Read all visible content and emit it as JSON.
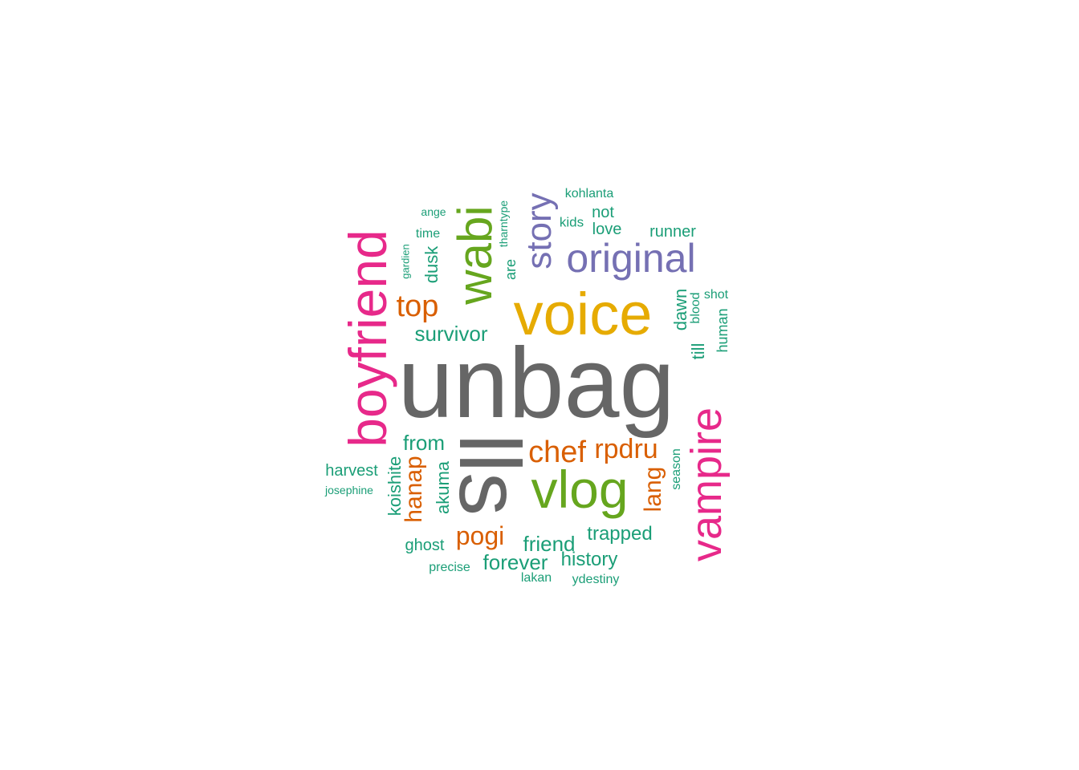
{
  "palette": {
    "teal": "#1b9e77",
    "orange": "#d95f02",
    "purple": "#7570b3",
    "magenta": "#e7298a",
    "green": "#66a61e",
    "gold": "#e6ab02",
    "gray": "#666666"
  },
  "words": [
    {
      "text": "unbag",
      "color": "gray"
    },
    {
      "text": "lls",
      "color": "gray"
    },
    {
      "text": "voice",
      "color": "gold"
    },
    {
      "text": "vlog",
      "color": "green"
    },
    {
      "text": "wabi",
      "color": "green"
    },
    {
      "text": "boyfriend",
      "color": "magenta"
    },
    {
      "text": "vampire",
      "color": "magenta"
    },
    {
      "text": "original",
      "color": "purple"
    },
    {
      "text": "story",
      "color": "purple"
    },
    {
      "text": "chef",
      "color": "orange"
    },
    {
      "text": "rpdru",
      "color": "orange"
    },
    {
      "text": "top",
      "color": "orange"
    },
    {
      "text": "pogi",
      "color": "orange"
    },
    {
      "text": "hanap",
      "color": "orange"
    },
    {
      "text": "lang",
      "color": "orange"
    },
    {
      "text": "survivor",
      "color": "teal"
    },
    {
      "text": "from",
      "color": "teal"
    },
    {
      "text": "friend",
      "color": "teal"
    },
    {
      "text": "trapped",
      "color": "teal"
    },
    {
      "text": "forever",
      "color": "teal"
    },
    {
      "text": "history",
      "color": "teal"
    },
    {
      "text": "dusk",
      "color": "teal"
    },
    {
      "text": "dawn",
      "color": "teal"
    },
    {
      "text": "till",
      "color": "teal"
    },
    {
      "text": "akuma",
      "color": "teal"
    },
    {
      "text": "koishite",
      "color": "teal"
    },
    {
      "text": "harvest",
      "color": "teal"
    },
    {
      "text": "ghost",
      "color": "teal"
    },
    {
      "text": "runner",
      "color": "teal"
    },
    {
      "text": "not",
      "color": "teal"
    },
    {
      "text": "love",
      "color": "teal"
    },
    {
      "text": "human",
      "color": "teal"
    },
    {
      "text": "season",
      "color": "teal"
    },
    {
      "text": "blood",
      "color": "teal"
    },
    {
      "text": "shot",
      "color": "teal"
    },
    {
      "text": "kids",
      "color": "teal"
    },
    {
      "text": "kohlanta",
      "color": "teal"
    },
    {
      "text": "time",
      "color": "teal"
    },
    {
      "text": "ange",
      "color": "teal"
    },
    {
      "text": "are",
      "color": "teal"
    },
    {
      "text": "tharntype",
      "color": "teal"
    },
    {
      "text": "gardien",
      "color": "teal"
    },
    {
      "text": "josephine",
      "color": "teal"
    },
    {
      "text": "precise",
      "color": "teal"
    },
    {
      "text": "lakan",
      "color": "teal"
    },
    {
      "text": "ydestiny",
      "color": "teal"
    }
  ]
}
